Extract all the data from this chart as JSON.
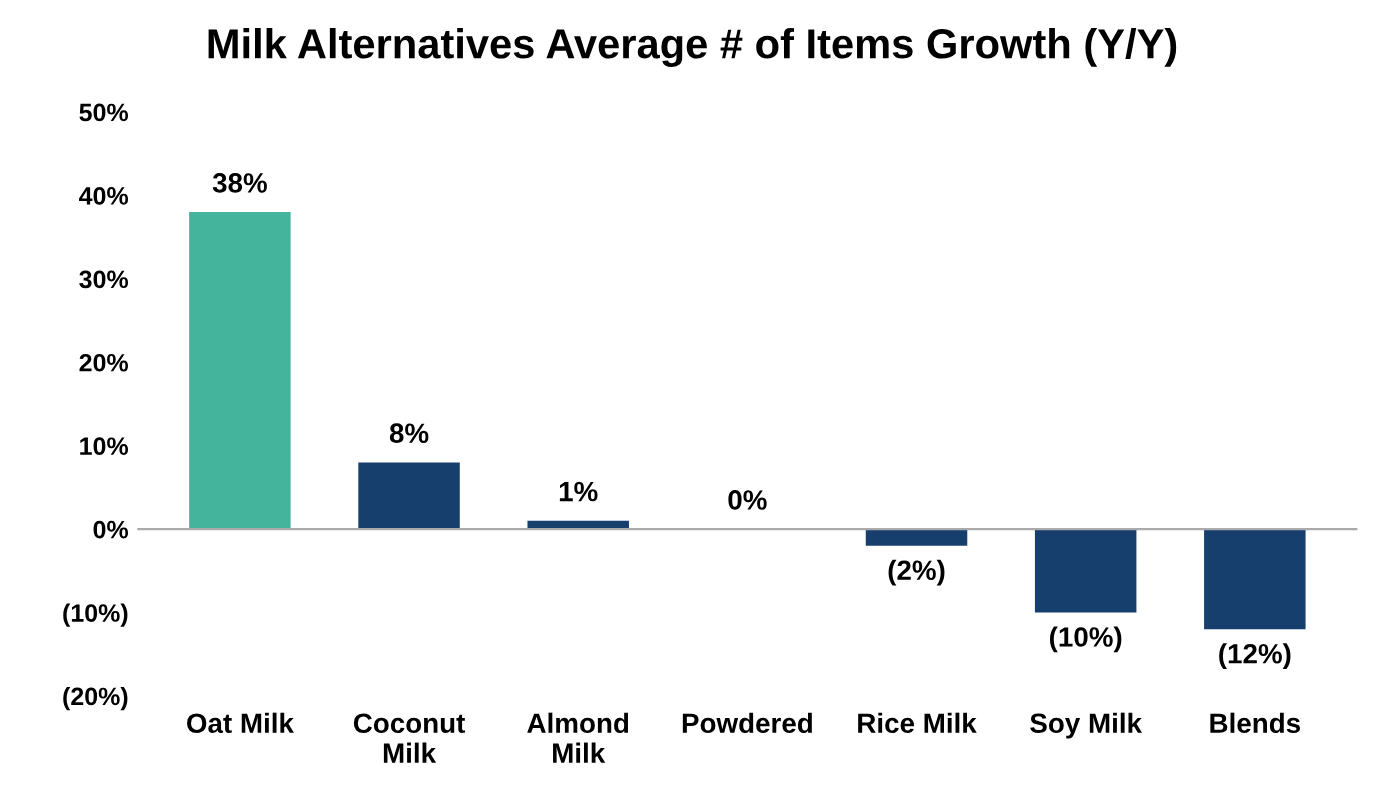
{
  "chart_data": {
    "type": "bar",
    "title": "Milk Alternatives Average # of Items Growth (Y/Y)",
    "categories": [
      "Oat Milk",
      "Coconut\nMilk",
      "Almond\nMilk",
      "Powdered",
      "Rice Milk",
      "Soy Milk",
      "Blends"
    ],
    "values": [
      38,
      8,
      1,
      0,
      -2,
      -10,
      -12
    ],
    "colors": [
      "#45b49c",
      "#173f6d",
      "#173f6d",
      "#173f6d",
      "#173f6d",
      "#173f6d",
      "#173f6d"
    ],
    "value_labels": [
      "38%",
      "8%",
      "1%",
      "0%",
      "(2%)",
      "(10%)",
      "(12%)"
    ],
    "ylim": [
      -20,
      50
    ],
    "yticks": [
      {
        "value": -20,
        "label": "(20%)"
      },
      {
        "value": -10,
        "label": "(10%)"
      },
      {
        "value": 0,
        "label": "0%"
      },
      {
        "value": 10,
        "label": "10%"
      },
      {
        "value": 20,
        "label": "20%"
      },
      {
        "value": 30,
        "label": "30%"
      },
      {
        "value": 40,
        "label": "40%"
      },
      {
        "value": 50,
        "label": "50%"
      }
    ],
    "legend": false
  }
}
